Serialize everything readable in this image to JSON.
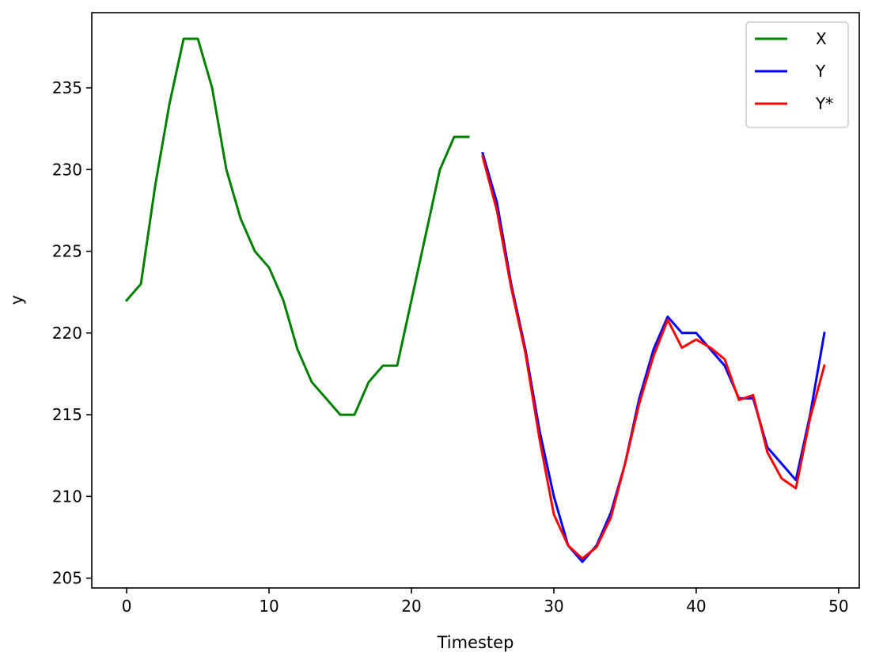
{
  "chart_data": {
    "type": "line",
    "xlabel": "Timestep",
    "ylabel": "y",
    "xlim": [
      -2.45,
      51.45
    ],
    "ylim": [
      204.4,
      239.6
    ],
    "xticks": [
      0,
      10,
      20,
      30,
      40,
      50
    ],
    "yticks": [
      205,
      210,
      215,
      220,
      225,
      230,
      235
    ],
    "grid": false,
    "legend_position": "top-right",
    "series": [
      {
        "name": "X",
        "color": "#008000",
        "x": [
          0,
          1,
          2,
          3,
          4,
          5,
          6,
          7,
          8,
          9,
          10,
          11,
          12,
          13,
          14,
          15,
          16,
          17,
          18,
          19,
          20,
          21,
          22,
          23,
          24
        ],
        "y": [
          222,
          223,
          229,
          234,
          238,
          238,
          235,
          230,
          227,
          225,
          224,
          222,
          219,
          217,
          216,
          215,
          215,
          217,
          218,
          218,
          222,
          226,
          230,
          232,
          232
        ]
      },
      {
        "name": "Y",
        "color": "#0000ff",
        "x": [
          25,
          26,
          27,
          28,
          29,
          30,
          31,
          32,
          33,
          34,
          35,
          36,
          37,
          38,
          39,
          40,
          41,
          42,
          43,
          44,
          45,
          46,
          47,
          48,
          49
        ],
        "y": [
          231,
          228,
          223,
          219,
          214,
          210,
          207,
          206,
          207,
          209,
          212,
          216,
          219,
          221,
          220,
          220,
          219,
          218,
          216,
          216,
          213,
          212,
          211,
          215,
          220
        ]
      },
      {
        "name": "Y*",
        "color": "#ff0000",
        "x": [
          25,
          26,
          27,
          28,
          29,
          30,
          31,
          32,
          33,
          34,
          35,
          36,
          37,
          38,
          39,
          40,
          41,
          42,
          43,
          44,
          45,
          46,
          47,
          48,
          49
        ],
        "y": [
          230.8,
          227.5,
          222.8,
          218.8,
          213.5,
          208.9,
          207,
          206.2,
          206.9,
          208.7,
          212,
          215.7,
          218.6,
          220.8,
          219.1,
          219.6,
          219.1,
          218.4,
          215.9,
          216.2,
          212.7,
          211.1,
          210.5,
          214.8,
          218
        ]
      }
    ]
  }
}
